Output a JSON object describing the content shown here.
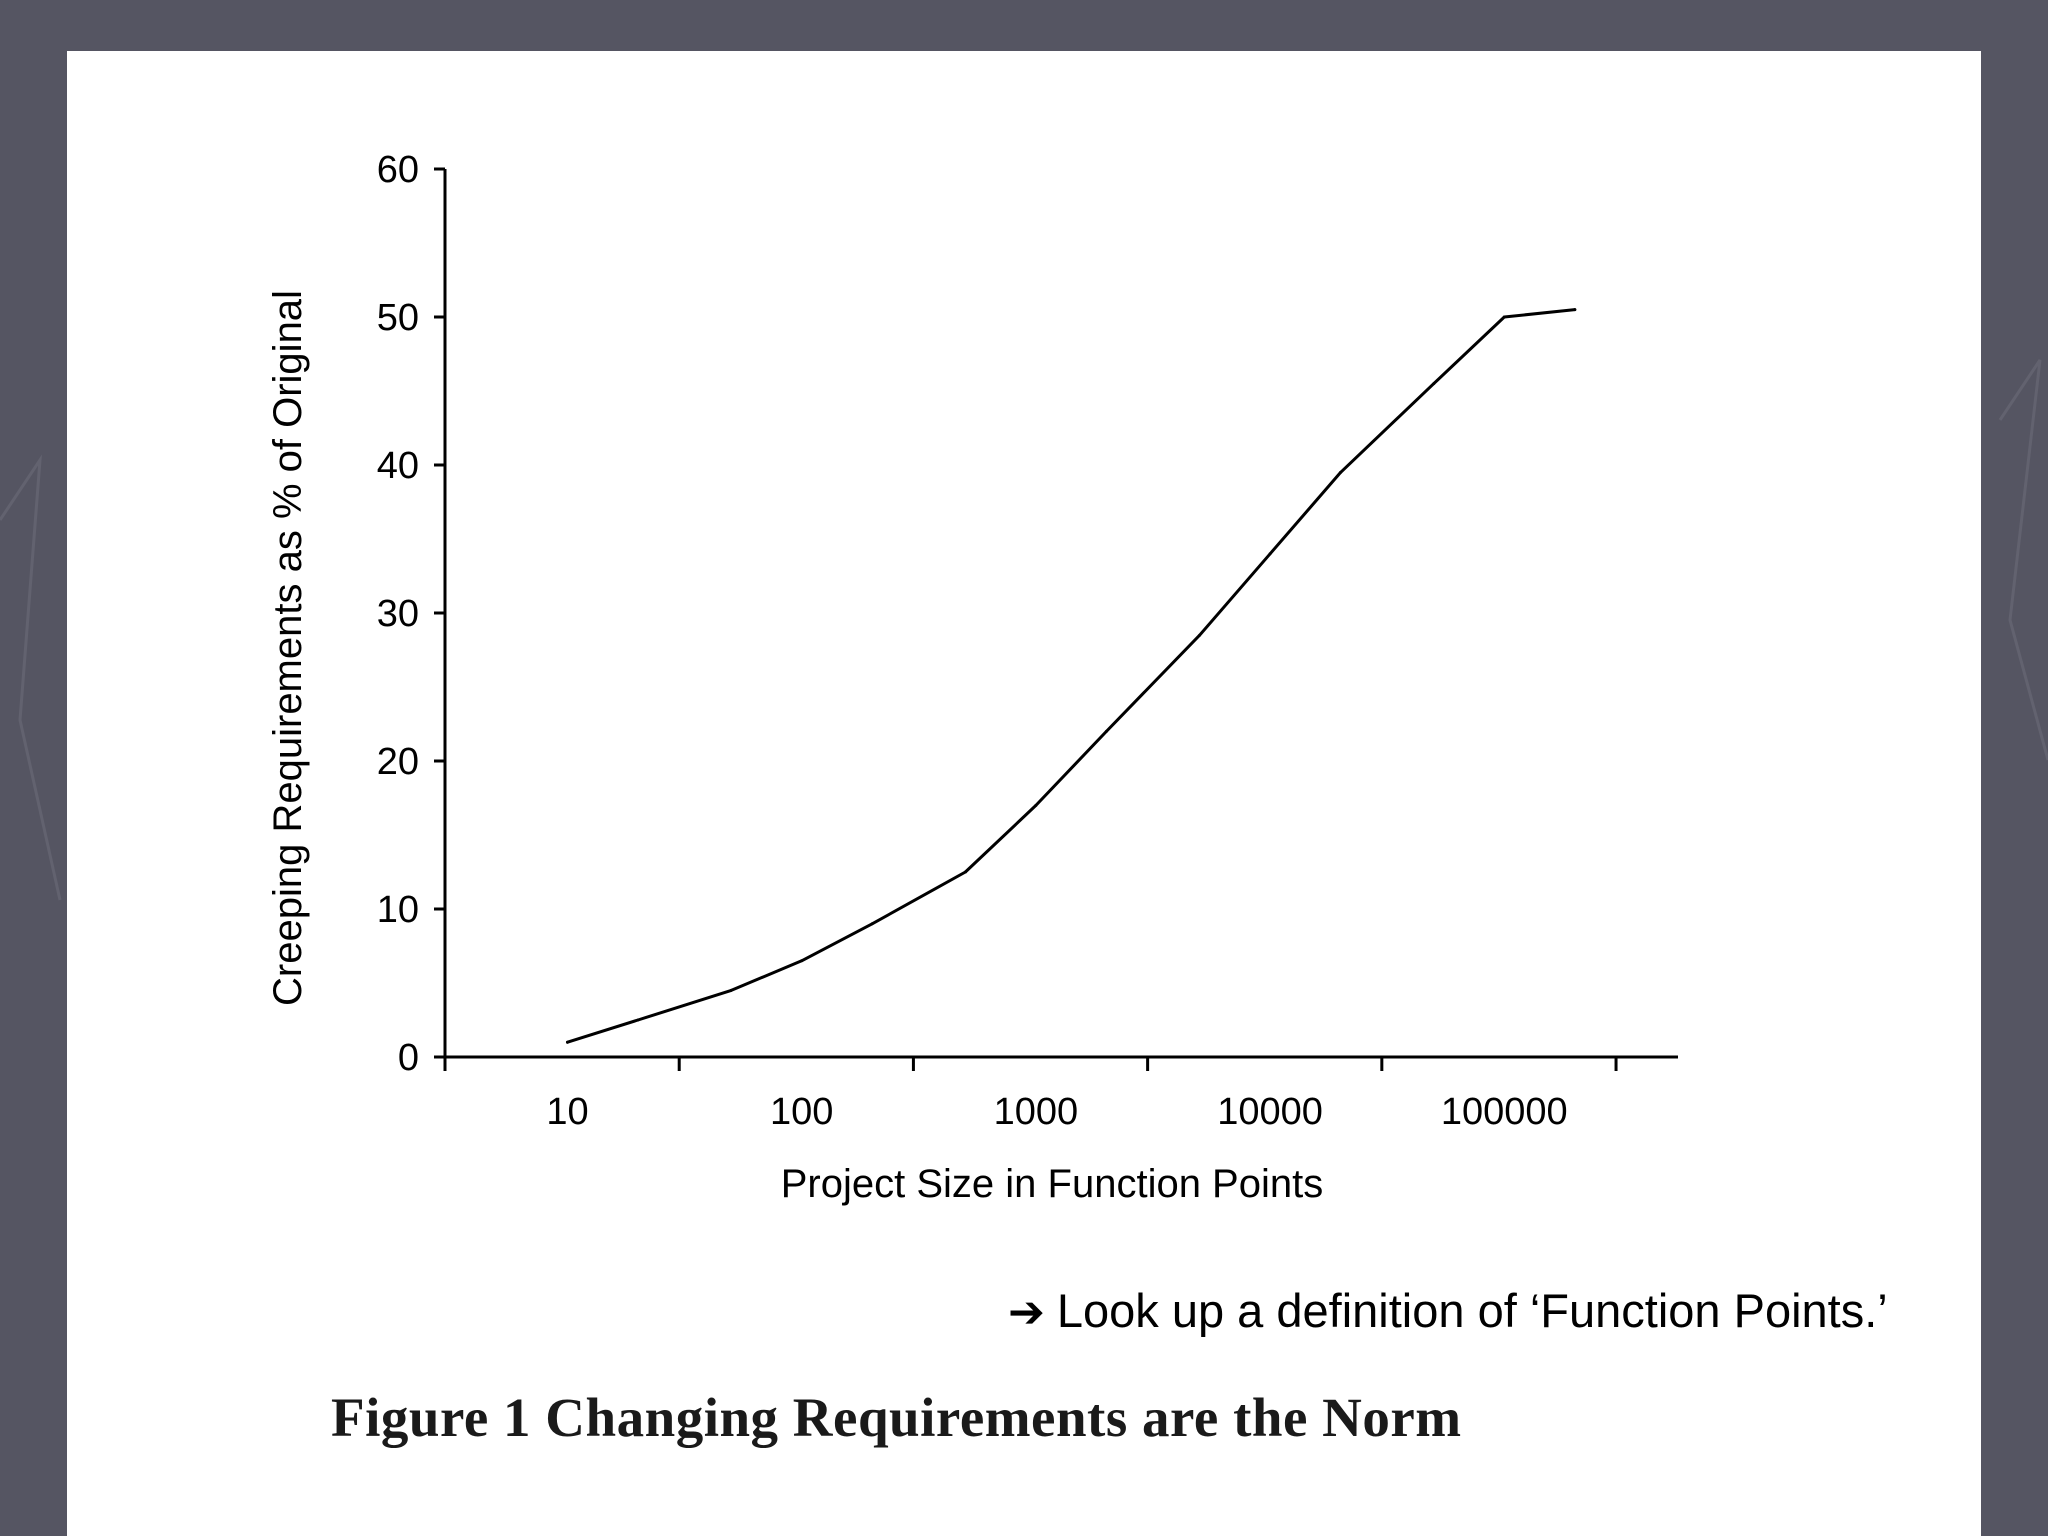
{
  "colors": {
    "background": "#555562",
    "panel": "#ffffff",
    "ink": "#000000"
  },
  "note": {
    "icon": "right-arrow-icon",
    "arrow": "➔",
    "text": "Look up a definition of ‘Function Points.’"
  },
  "caption": "Figure 1  Changing Requirements are the Norm",
  "chart_data": {
    "type": "line",
    "title": "",
    "xlabel": "Project Size in Function Points",
    "ylabel": "Creeping Requirements as % of Original",
    "xscale": "log",
    "xlim": [
      3,
      500000
    ],
    "ylim": [
      0,
      60
    ],
    "xticks": [
      10,
      100,
      1000,
      10000,
      100000
    ],
    "xtick_labels": [
      "10",
      "100",
      "1000",
      "10000",
      "100000"
    ],
    "yticks": [
      0,
      10,
      20,
      30,
      40,
      50,
      60
    ],
    "ytick_labels": [
      "0",
      "10",
      "20",
      "30",
      "40",
      "50",
      "60"
    ],
    "grid": false,
    "legend": "none",
    "series": [
      {
        "x": [
          10,
          20,
          50,
          100,
          200,
          500,
          1000,
          2000,
          5000,
          10000,
          20000,
          50000,
          100000,
          200000
        ],
        "y": [
          1,
          2.5,
          4.5,
          6.5,
          9,
          12.5,
          17,
          22,
          28.5,
          34,
          39.5,
          45.5,
          50,
          50.5
        ]
      }
    ]
  }
}
